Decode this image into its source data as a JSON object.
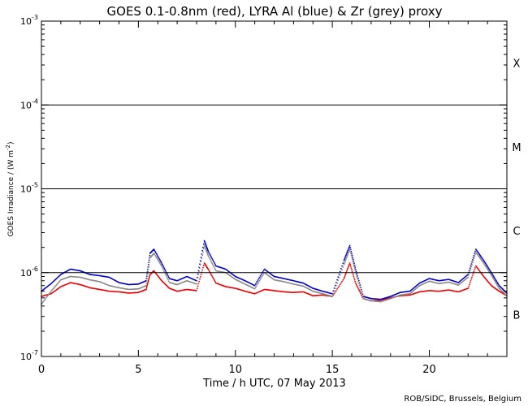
{
  "chart_data": {
    "type": "scatter",
    "title": "GOES 0.1-0.8nm (red), LYRA Al (blue) & Zr (grey) proxy",
    "xlabel": "Time / h UTC, 07 May 2013",
    "ylabel": "GOES Irradiance / (W m-2)",
    "credit": "ROB/SIDC, Brussels, Belgium",
    "xlim": [
      0,
      24
    ],
    "ylim": [
      1e-07,
      0.001
    ],
    "yscale": "log",
    "x_ticks": [
      {
        "v": 0,
        "label": "0"
      },
      {
        "v": 5,
        "label": "5"
      },
      {
        "v": 10,
        "label": "10"
      },
      {
        "v": 15,
        "label": "15"
      },
      {
        "v": 20,
        "label": "20"
      }
    ],
    "y_ticks": [
      {
        "v": 1e-07,
        "base": "10",
        "exp": "-7"
      },
      {
        "v": 1e-06,
        "base": "10",
        "exp": "-6"
      },
      {
        "v": 1e-05,
        "base": "10",
        "exp": "-5"
      },
      {
        "v": 0.0001,
        "base": "10",
        "exp": "-4"
      },
      {
        "v": 0.001,
        "base": "10",
        "exp": "-3"
      }
    ],
    "flare_classes": [
      {
        "label": "X",
        "y": 0.000316
      },
      {
        "label": "M",
        "y": 3.16e-05
      },
      {
        "label": "C",
        "y": 3.16e-06
      },
      {
        "label": "B",
        "y": 3.16e-07
      }
    ],
    "threshold_lines": [
      1e-06,
      1e-05,
      0.0001
    ],
    "grid": false,
    "legend": "none",
    "series": [
      {
        "color": "#ee0000",
        "points": [
          [
            0,
            5.2e-07
          ],
          [
            0.5,
            5.6e-07
          ],
          [
            1,
            6.8e-07
          ],
          [
            1.5,
            7.6e-07
          ],
          [
            2,
            7.2e-07
          ],
          [
            2.5,
            6.6e-07
          ],
          [
            3,
            6.3e-07
          ],
          [
            3.5,
            6e-07
          ],
          [
            4,
            5.9e-07
          ],
          [
            4.5,
            5.7e-07
          ],
          [
            5,
            5.8e-07
          ],
          [
            5.4,
            6.3e-07
          ],
          [
            5.6,
            9.5e-07
          ],
          [
            5.8,
            1.05e-06
          ],
          [
            6.2,
            8e-07
          ],
          [
            6.6,
            6.5e-07
          ],
          [
            7,
            6e-07
          ],
          [
            7.5,
            6.3e-07
          ],
          [
            8,
            6.1e-07
          ],
          [
            8.4,
            1.3e-06
          ],
          [
            8.6,
            1.1e-06
          ],
          [
            9,
            7.5e-07
          ],
          [
            9.5,
            6.8e-07
          ],
          [
            10,
            6.5e-07
          ],
          [
            10.5,
            6e-07
          ],
          [
            11,
            5.6e-07
          ],
          [
            11.5,
            6.3e-07
          ],
          [
            12,
            6.1e-07
          ],
          [
            12.5,
            5.9e-07
          ],
          [
            13,
            5.8e-07
          ],
          [
            13.5,
            5.9e-07
          ],
          [
            14,
            5.3e-07
          ],
          [
            14.5,
            5.4e-07
          ],
          [
            15,
            5.2e-07
          ],
          [
            15.6,
            8.5e-07
          ],
          [
            15.9,
            1.3e-06
          ],
          [
            16.2,
            7.5e-07
          ],
          [
            16.6,
            4.9e-07
          ],
          [
            17,
            4.6e-07
          ],
          [
            17.5,
            4.7e-07
          ],
          [
            18,
            5e-07
          ],
          [
            18.5,
            5.3e-07
          ],
          [
            19,
            5.4e-07
          ],
          [
            19.5,
            5.9e-07
          ],
          [
            20,
            6.1e-07
          ],
          [
            20.5,
            6e-07
          ],
          [
            21,
            6.2e-07
          ],
          [
            21.5,
            5.9e-07
          ],
          [
            22,
            6.5e-07
          ],
          [
            22.4,
            1.2e-06
          ],
          [
            22.8,
            9e-07
          ],
          [
            23.2,
            7e-07
          ],
          [
            23.6,
            6e-07
          ],
          [
            24,
            5.3e-07
          ]
        ]
      },
      {
        "color": "#0000cc",
        "points": [
          [
            0,
            6e-07
          ],
          [
            0.5,
            7.4e-07
          ],
          [
            1,
            9.5e-07
          ],
          [
            1.5,
            1.1e-06
          ],
          [
            2,
            1.05e-06
          ],
          [
            2.5,
            9.5e-07
          ],
          [
            3,
            9.2e-07
          ],
          [
            3.5,
            8.8e-07
          ],
          [
            4,
            7.6e-07
          ],
          [
            4.5,
            7.2e-07
          ],
          [
            5,
            7.3e-07
          ],
          [
            5.4,
            8e-07
          ],
          [
            5.6,
            1.7e-06
          ],
          [
            5.8,
            1.9e-06
          ],
          [
            6.2,
            1.3e-06
          ],
          [
            6.6,
            8.5e-07
          ],
          [
            7,
            8e-07
          ],
          [
            7.5,
            9e-07
          ],
          [
            8,
            8e-07
          ],
          [
            8.4,
            2.4e-06
          ],
          [
            8.6,
            1.8e-06
          ],
          [
            9,
            1.2e-06
          ],
          [
            9.5,
            1.1e-06
          ],
          [
            10,
            9e-07
          ],
          [
            10.5,
            8e-07
          ],
          [
            11,
            7e-07
          ],
          [
            11.5,
            1.1e-06
          ],
          [
            12,
            9e-07
          ],
          [
            12.5,
            8.5e-07
          ],
          [
            13,
            8e-07
          ],
          [
            13.5,
            7.5e-07
          ],
          [
            14,
            6.5e-07
          ],
          [
            14.5,
            6e-07
          ],
          [
            15,
            5.6e-07
          ],
          [
            15.6,
            1.4e-06
          ],
          [
            15.9,
            2.1e-06
          ],
          [
            16.2,
            1.1e-06
          ],
          [
            16.6,
            5.2e-07
          ],
          [
            17,
            4.9e-07
          ],
          [
            17.5,
            4.8e-07
          ],
          [
            18,
            5.2e-07
          ],
          [
            18.5,
            5.8e-07
          ],
          [
            19,
            6e-07
          ],
          [
            19.5,
            7.5e-07
          ],
          [
            20,
            8.5e-07
          ],
          [
            20.5,
            8e-07
          ],
          [
            21,
            8.3e-07
          ],
          [
            21.5,
            7.6e-07
          ],
          [
            22,
            9.5e-07
          ],
          [
            22.4,
            1.9e-06
          ],
          [
            22.8,
            1.4e-06
          ],
          [
            23.2,
            1e-06
          ],
          [
            23.6,
            7e-07
          ],
          [
            24,
            5.7e-07
          ]
        ]
      },
      {
        "color": "#888888",
        "points": [
          [
            0,
            4.2e-07
          ],
          [
            0.5,
            6e-07
          ],
          [
            1,
            8.2e-07
          ],
          [
            1.5,
            9e-07
          ],
          [
            2,
            8.8e-07
          ],
          [
            2.5,
            8.2e-07
          ],
          [
            3,
            7.8e-07
          ],
          [
            3.5,
            7e-07
          ],
          [
            4,
            6.6e-07
          ],
          [
            4.5,
            6.3e-07
          ],
          [
            5,
            6.4e-07
          ],
          [
            5.4,
            7e-07
          ],
          [
            5.6,
            1.5e-06
          ],
          [
            5.8,
            1.7e-06
          ],
          [
            6.2,
            1.2e-06
          ],
          [
            6.6,
            7.6e-07
          ],
          [
            7,
            7.2e-07
          ],
          [
            7.5,
            8e-07
          ],
          [
            8,
            7.3e-07
          ],
          [
            8.4,
            2.1e-06
          ],
          [
            8.6,
            1.6e-06
          ],
          [
            9,
            1.05e-06
          ],
          [
            9.5,
            1e-06
          ],
          [
            10,
            8.3e-07
          ],
          [
            10.5,
            7.3e-07
          ],
          [
            11,
            6.4e-07
          ],
          [
            11.5,
            1e-06
          ],
          [
            12,
            8.2e-07
          ],
          [
            12.5,
            7.8e-07
          ],
          [
            13,
            7.3e-07
          ],
          [
            13.5,
            6.9e-07
          ],
          [
            14,
            6e-07
          ],
          [
            14.5,
            5.6e-07
          ],
          [
            15,
            5.2e-07
          ],
          [
            15.6,
            1.25e-06
          ],
          [
            15.9,
            1.9e-06
          ],
          [
            16.2,
            1e-06
          ],
          [
            16.6,
            4.9e-07
          ],
          [
            17,
            4.6e-07
          ],
          [
            17.5,
            4.5e-07
          ],
          [
            18,
            4.9e-07
          ],
          [
            18.5,
            5.4e-07
          ],
          [
            19,
            5.6e-07
          ],
          [
            19.5,
            7e-07
          ],
          [
            20,
            7.9e-07
          ],
          [
            20.5,
            7.4e-07
          ],
          [
            21,
            7.7e-07
          ],
          [
            21.5,
            7.1e-07
          ],
          [
            22,
            8.8e-07
          ],
          [
            22.4,
            1.75e-06
          ],
          [
            22.8,
            1.3e-06
          ],
          [
            23.2,
            9.3e-07
          ],
          [
            23.6,
            6.5e-07
          ],
          [
            24,
            5.3e-07
          ]
        ]
      }
    ]
  }
}
